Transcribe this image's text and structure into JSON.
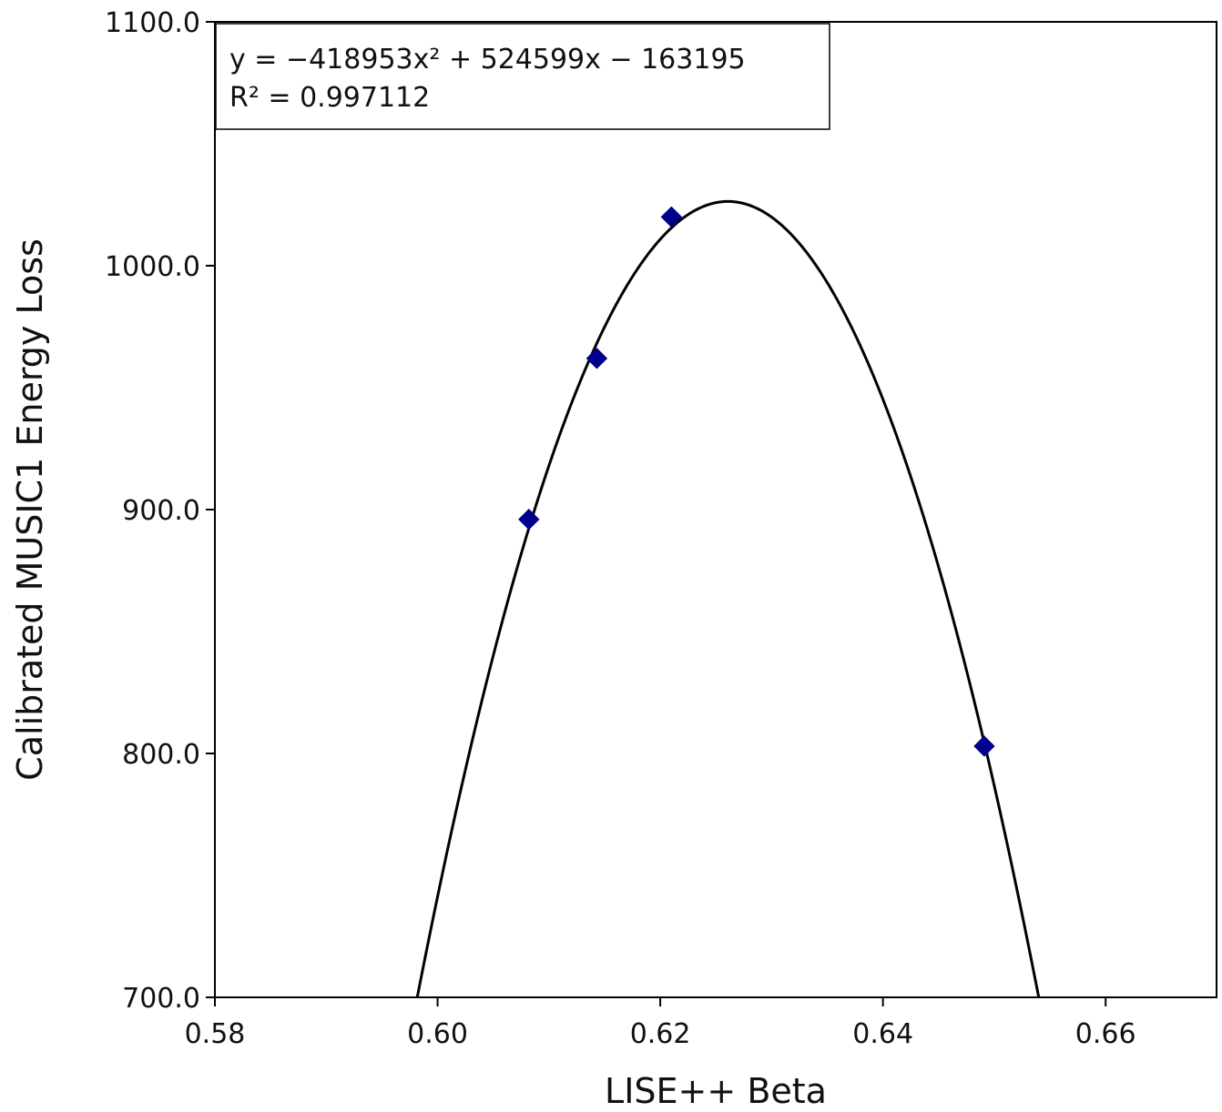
{
  "chart_data": {
    "type": "scatter",
    "xlabel": "LISE++ Beta",
    "ylabel": "Calibrated MUSIC1 Energy Loss",
    "xlim": [
      0.58,
      0.67
    ],
    "ylim": [
      700.0,
      1100.0
    ],
    "x_ticks": [
      "0.58",
      "0.60",
      "0.62",
      "0.64",
      "0.66"
    ],
    "y_ticks": [
      "700.0",
      "800.0",
      "900.0",
      "1000.0",
      "1100.0"
    ],
    "grid": false,
    "series": [
      {
        "marker": "diamond",
        "color": "#00008b",
        "points": [
          {
            "x": 0.6082,
            "y": 896
          },
          {
            "x": 0.6143,
            "y": 962
          },
          {
            "x": 0.621,
            "y": 1020
          },
          {
            "x": 0.6491,
            "y": 803
          }
        ]
      }
    ],
    "fit": {
      "type": "quadratic",
      "coefficients": {
        "a": -418953,
        "b": 524599,
        "c": -163195
      },
      "color": "#000000"
    },
    "annotation": {
      "line1": "y = −418953x² + 524599x − 163195",
      "line2": "R² = 0.997112",
      "placement": "top-left"
    }
  }
}
